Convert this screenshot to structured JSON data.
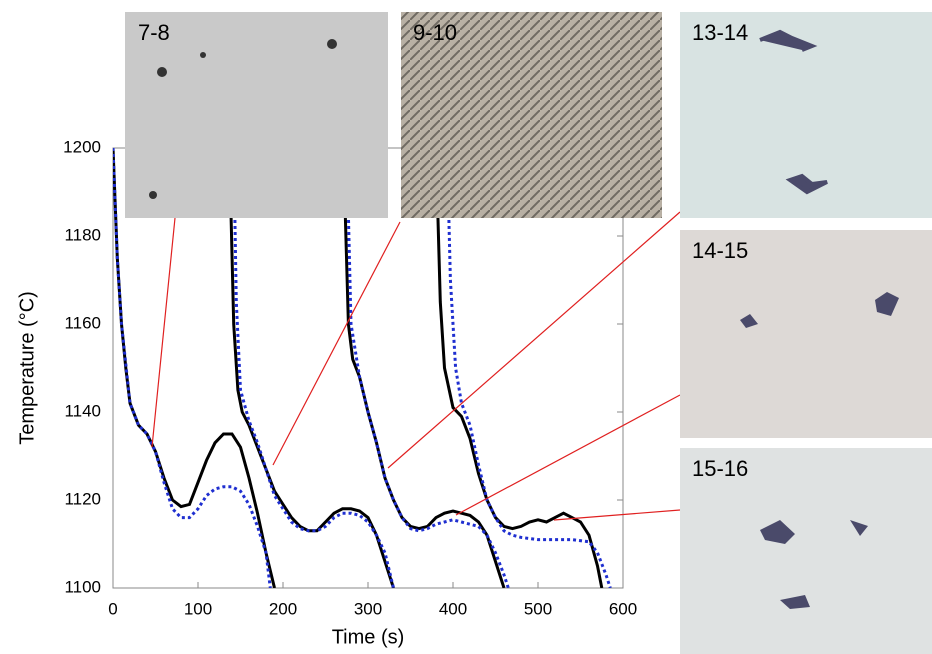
{
  "chart_data": {
    "type": "line",
    "xlabel": "Time (s)",
    "ylabel": "Temperature (°C)",
    "xlim": [
      0,
      600
    ],
    "xticks": [
      0,
      100,
      200,
      300,
      400,
      500,
      600
    ],
    "ylim": [
      1100,
      1200
    ],
    "yticks": [
      1100,
      1120,
      1140,
      1160,
      1180,
      1200
    ],
    "series": [
      {
        "color": "#000000",
        "dash": "solid",
        "x": [
          0,
          5,
          10,
          15,
          20,
          30,
          40,
          50,
          60,
          70,
          80,
          90,
          100,
          110,
          120,
          130,
          140,
          150,
          160,
          170,
          180,
          190,
          null,
          137,
          142,
          147,
          152,
          160,
          170,
          180,
          190,
          200,
          210,
          220,
          230,
          240,
          250,
          260,
          270,
          280,
          290,
          300,
          310,
          320,
          330,
          null,
          271,
          277,
          282,
          290,
          300,
          310,
          320,
          330,
          340,
          350,
          360,
          370,
          380,
          390,
          400,
          410,
          420,
          430,
          440,
          450,
          460,
          null,
          380,
          385,
          390,
          400,
          410,
          420,
          430,
          440,
          450,
          460,
          470,
          480,
          490,
          500,
          510,
          520,
          530,
          540,
          550,
          560,
          570,
          575
        ],
        "values": [
          1200,
          1175,
          1160,
          1150,
          1142,
          1137,
          1135,
          1131,
          1125,
          1120,
          1118.5,
          1119,
          1124,
          1129,
          1133,
          1135,
          1135,
          1132,
          1125,
          1117,
          1108,
          1100,
          null,
          1200,
          1160,
          1145,
          1140,
          1137,
          1132,
          1127,
          1122,
          1119,
          1116,
          1114,
          1113,
          1113,
          1115,
          1117,
          1118,
          1118,
          1117.5,
          1116,
          1112,
          1106,
          1100,
          null,
          1200,
          1160,
          1152,
          1148,
          1140,
          1133,
          1125,
          1120,
          1116,
          1114,
          1113.5,
          1114,
          1116,
          1117,
          1117.5,
          1117,
          1116.5,
          1115,
          1112,
          1106,
          1100,
          null,
          1200,
          1165,
          1150,
          1141,
          1139,
          1134,
          1126,
          1120,
          1116,
          1114,
          1113.5,
          1114,
          1115,
          1115.5,
          1115,
          1116,
          1117,
          1116,
          1115,
          1112,
          1105,
          1100
        ]
      },
      {
        "color": "#1f2fd0",
        "dash": "dotted",
        "x": [
          0,
          5,
          10,
          20,
          30,
          40,
          50,
          60,
          70,
          80,
          90,
          100,
          110,
          120,
          130,
          140,
          150,
          160,
          170,
          180,
          185,
          null,
          142,
          145,
          150,
          160,
          170,
          180,
          190,
          200,
          210,
          220,
          230,
          240,
          250,
          260,
          270,
          280,
          290,
          300,
          310,
          320,
          330,
          null,
          275,
          280,
          290,
          300,
          310,
          320,
          330,
          340,
          350,
          360,
          370,
          380,
          390,
          400,
          410,
          420,
          430,
          440,
          450,
          460,
          465,
          null,
          393,
          397,
          403,
          410,
          420,
          430,
          440,
          450,
          460,
          470,
          480,
          500,
          520,
          540,
          560,
          570,
          580,
          585
        ],
        "values": [
          1200,
          1175,
          1160,
          1142,
          1137,
          1135,
          1131,
          1124,
          1118,
          1116,
          1116,
          1118,
          1121,
          1122.5,
          1123,
          1123,
          1122,
          1119,
          1114,
          1108,
          1100,
          null,
          1200,
          1165,
          1145,
          1138,
          1133,
          1127,
          1121,
          1118,
          1115,
          1113.5,
          1113,
          1113,
          1114,
          1116,
          1117,
          1117,
          1116.5,
          1115,
          1112,
          1108,
          1100,
          null,
          1200,
          1160,
          1148,
          1140,
          1133,
          1125,
          1120,
          1116,
          1113.5,
          1113,
          1113.5,
          1114.5,
          1115,
          1115.5,
          1115,
          1114.5,
          1114,
          1112,
          1108,
          1103,
          1100,
          null,
          1200,
          1170,
          1150,
          1142,
          1137,
          1128,
          1120,
          1116,
          1113,
          1112,
          1111.5,
          1111,
          1111,
          1111,
          1110.5,
          1108,
          1103,
          1100
        ]
      }
    ],
    "annotations": [
      "7-8",
      "9-10",
      "13-14",
      "14-15",
      "15-16"
    ]
  }
}
